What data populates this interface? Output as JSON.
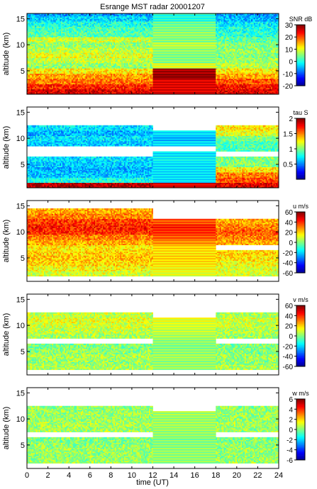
{
  "figure": {
    "title": "Esrange MST radar 20001207",
    "xlabel": "time (UT)",
    "ylabel": "altitude (km)",
    "x_range": [
      0,
      24
    ],
    "x_ticks": [
      0,
      2,
      4,
      6,
      8,
      10,
      12,
      14,
      16,
      18,
      20,
      22,
      24
    ],
    "y_range": [
      0.5,
      16
    ],
    "y_ticks": [
      5,
      10,
      15
    ],
    "colormap": "jet",
    "colormap_colors": [
      "#00008f",
      "#0000ff",
      "#0080ff",
      "#00ffff",
      "#80ff80",
      "#ffff00",
      "#ff8000",
      "#ff0000",
      "#800000"
    ]
  },
  "chart_data": [
    {
      "type": "heatmap",
      "parameter": "SNR",
      "unit_label": "SNR dB",
      "color_range": [
        -20,
        30
      ],
      "color_ticks": [
        -20,
        -10,
        0,
        10,
        20,
        30
      ],
      "x_range": [
        0,
        24
      ],
      "y_range": [
        0.5,
        16
      ],
      "altitudes_km": [
        1,
        2,
        3,
        4,
        5,
        6,
        7,
        8,
        9,
        10,
        11,
        12,
        13,
        14,
        15,
        16
      ],
      "periods": [
        {
          "time_range": [
            0,
            12
          ],
          "values_by_altitude": [
            25,
            22,
            18,
            16,
            12,
            6,
            8,
            10,
            8,
            6,
            9,
            3,
            2,
            0,
            -3,
            -6
          ]
        },
        {
          "time_range": [
            12,
            18
          ],
          "values_by_altitude": [
            25,
            25,
            25,
            30,
            28,
            10,
            5,
            5,
            6,
            8,
            5,
            6,
            5,
            4,
            0,
            0
          ]
        },
        {
          "time_range": [
            18,
            24
          ],
          "values_by_altitude": [
            25,
            23,
            20,
            16,
            12,
            8,
            6,
            5,
            6,
            5,
            3,
            1,
            0,
            -2,
            -5,
            -6
          ]
        }
      ]
    },
    {
      "type": "heatmap",
      "parameter": "tau",
      "unit_label": "tau S",
      "color_range": [
        0,
        2
      ],
      "color_ticks": [
        0.5,
        1,
        1.5,
        2
      ],
      "x_range": [
        0,
        24
      ],
      "y_range": [
        0.5,
        16
      ],
      "altitudes_km": [
        1,
        2,
        3,
        4,
        5,
        6,
        7,
        8,
        9,
        10,
        11,
        12,
        13,
        14,
        15,
        16
      ],
      "periods": [
        {
          "time_range": [
            0,
            12
          ],
          "values_by_altitude": [
            1.9,
            0.8,
            0.65,
            0.6,
            0.65,
            0.7,
            null,
            null,
            0.65,
            0.7,
            0.6,
            0.7,
            null,
            null,
            null,
            null
          ]
        },
        {
          "time_range": [
            12,
            18
          ],
          "values_by_altitude": [
            1.8,
            0.7,
            0.7,
            0.7,
            0.7,
            0.75,
            0.7,
            null,
            0.7,
            0.6,
            0.7,
            null,
            null,
            null,
            null,
            null
          ]
        },
        {
          "time_range": [
            18,
            24
          ],
          "values_by_altitude": [
            1.8,
            1.6,
            1.5,
            1.3,
            1.0,
            1.0,
            null,
            0.9,
            0.9,
            1.0,
            1.2,
            1.3,
            null,
            null,
            null,
            null
          ]
        }
      ]
    },
    {
      "type": "heatmap",
      "parameter": "u",
      "unit_label": "u m/s",
      "color_range": [
        -60,
        60
      ],
      "color_ticks": [
        -60,
        -40,
        -20,
        0,
        20,
        40,
        60
      ],
      "x_range": [
        0,
        24
      ],
      "y_range": [
        0.5,
        16
      ],
      "altitudes_km": [
        1,
        2,
        3,
        4,
        5,
        6,
        7,
        8,
        9,
        10,
        11,
        12,
        13,
        14,
        15,
        16
      ],
      "periods": [
        {
          "time_range": [
            0,
            12
          ],
          "values_by_altitude": [
            null,
            10,
            15,
            20,
            22,
            20,
            18,
            25,
            30,
            40,
            42,
            38,
            30,
            25,
            null,
            null
          ]
        },
        {
          "time_range": [
            12,
            18
          ],
          "values_by_altitude": [
            null,
            12,
            15,
            18,
            20,
            18,
            20,
            28,
            35,
            40,
            42,
            35,
            null,
            null,
            null,
            null
          ]
        },
        {
          "time_range": [
            18,
            24
          ],
          "values_by_altitude": [
            null,
            10,
            12,
            15,
            18,
            20,
            null,
            25,
            30,
            35,
            30,
            25,
            null,
            null,
            null,
            null
          ]
        }
      ]
    },
    {
      "type": "heatmap",
      "parameter": "v",
      "unit_label": "v m/s",
      "color_range": [
        -60,
        60
      ],
      "color_ticks": [
        -60,
        -40,
        -20,
        0,
        20,
        40,
        60
      ],
      "x_range": [
        0,
        24
      ],
      "y_range": [
        0.5,
        16
      ],
      "altitudes_km": [
        1,
        2,
        3,
        4,
        5,
        6,
        7,
        8,
        9,
        10,
        11,
        12,
        13,
        14,
        15,
        16
      ],
      "periods": [
        {
          "time_range": [
            0,
            12
          ],
          "values_by_altitude": [
            null,
            5,
            3,
            5,
            2,
            0,
            null,
            5,
            8,
            10,
            12,
            8,
            null,
            null,
            null,
            null
          ]
        },
        {
          "time_range": [
            12,
            18
          ],
          "values_by_altitude": [
            null,
            3,
            2,
            4,
            2,
            0,
            2,
            5,
            8,
            10,
            12,
            null,
            null,
            null,
            null,
            null
          ]
        },
        {
          "time_range": [
            18,
            24
          ],
          "values_by_altitude": [
            null,
            5,
            2,
            4,
            1,
            0,
            null,
            4,
            6,
            8,
            10,
            6,
            null,
            null,
            null,
            null
          ]
        }
      ]
    },
    {
      "type": "heatmap",
      "parameter": "w",
      "unit_label": "w m/s",
      "color_range": [
        -6,
        6
      ],
      "color_ticks": [
        -6,
        -4,
        -2,
        0,
        2,
        4,
        6
      ],
      "x_range": [
        0,
        24
      ],
      "y_range": [
        0.5,
        16
      ],
      "altitudes_km": [
        1,
        2,
        3,
        4,
        5,
        6,
        7,
        8,
        9,
        10,
        11,
        12,
        13,
        14,
        15,
        16
      ],
      "periods": [
        {
          "time_range": [
            0,
            12
          ],
          "values_by_altitude": [
            null,
            0.3,
            0.2,
            0.3,
            0.2,
            0,
            null,
            0.4,
            0.5,
            0.3,
            0.4,
            0.2,
            null,
            null,
            null,
            null
          ]
        },
        {
          "time_range": [
            12,
            18
          ],
          "values_by_altitude": [
            null,
            0.2,
            0.2,
            0.2,
            0.1,
            0,
            0.2,
            0.3,
            0.4,
            0.3,
            0.4,
            null,
            null,
            null,
            null,
            null
          ]
        },
        {
          "time_range": [
            18,
            24
          ],
          "values_by_altitude": [
            null,
            0.3,
            0.2,
            0.3,
            0.2,
            0,
            null,
            0.3,
            0.4,
            0.3,
            0.3,
            0.2,
            null,
            null,
            null,
            null
          ]
        }
      ]
    }
  ]
}
